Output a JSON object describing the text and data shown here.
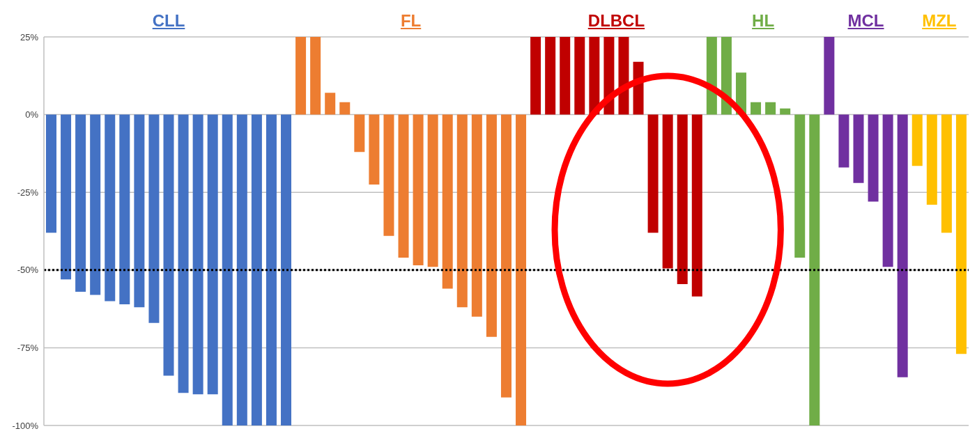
{
  "chart_data": {
    "type": "bar",
    "categories": [
      null,
      null,
      null,
      null,
      null,
      null,
      null,
      null,
      null,
      null,
      null,
      null,
      null,
      null,
      null,
      null,
      null,
      null,
      null,
      null,
      null,
      null,
      null,
      null,
      null,
      null,
      null,
      null,
      null,
      null,
      null,
      null,
      null,
      null,
      null,
      null,
      null,
      null,
      null,
      null,
      null,
      null,
      null,
      null,
      null,
      null,
      null,
      null,
      null,
      null,
      null,
      null,
      null,
      null,
      null,
      null,
      null,
      null,
      null,
      null,
      null,
      null,
      null
    ],
    "series": [
      {
        "name": "CLL",
        "color": "#4472c4",
        "values": [
          -38,
          -53,
          -57,
          -58,
          -60,
          -61,
          -62,
          -67,
          -84,
          -89.5,
          -90,
          -90,
          -100,
          -100,
          -100,
          -100,
          -100,
          null,
          null,
          null,
          null,
          null,
          null,
          null,
          null,
          null,
          null,
          null,
          null,
          null,
          null,
          null,
          null,
          null,
          null,
          null,
          null,
          null,
          null,
          null,
          null,
          null,
          null,
          null,
          null,
          null,
          null,
          null,
          null,
          null,
          null,
          null,
          null,
          null,
          null,
          null,
          null,
          null,
          null,
          null,
          null,
          null,
          null
        ]
      },
      {
        "name": "FL",
        "color": "#ed7d31",
        "values": [
          null,
          null,
          null,
          null,
          null,
          null,
          null,
          null,
          null,
          null,
          null,
          null,
          null,
          null,
          null,
          null,
          null,
          25,
          25,
          7,
          4,
          -12,
          -22.5,
          -39,
          -46,
          -48.5,
          -49,
          -56,
          -62,
          -65,
          -71.5,
          -91,
          -100,
          null,
          null,
          null,
          null,
          null,
          null,
          null,
          null,
          null,
          null,
          null,
          null,
          null,
          null,
          null,
          null,
          null,
          null,
          null,
          null,
          null,
          null,
          null,
          null,
          null,
          null,
          null,
          null,
          null,
          null
        ]
      },
      {
        "name": "DLBCL",
        "color": "#c00000",
        "values": [
          null,
          null,
          null,
          null,
          null,
          null,
          null,
          null,
          null,
          null,
          null,
          null,
          null,
          null,
          null,
          null,
          null,
          null,
          null,
          null,
          null,
          null,
          null,
          null,
          null,
          null,
          null,
          null,
          null,
          null,
          null,
          null,
          null,
          25,
          25,
          25,
          25,
          25,
          25,
          25,
          17,
          -38,
          -49.5,
          -54.5,
          -58.5,
          null,
          null,
          null,
          null,
          null,
          null,
          null,
          null,
          null,
          null,
          null,
          null,
          null,
          null,
          null,
          null,
          null,
          null
        ]
      },
      {
        "name": "HL",
        "color": "#70ad47",
        "values": [
          null,
          null,
          null,
          null,
          null,
          null,
          null,
          null,
          null,
          null,
          null,
          null,
          null,
          null,
          null,
          null,
          null,
          null,
          null,
          null,
          null,
          null,
          null,
          null,
          null,
          null,
          null,
          null,
          null,
          null,
          null,
          null,
          null,
          null,
          null,
          null,
          null,
          null,
          null,
          null,
          null,
          null,
          null,
          null,
          null,
          25,
          25,
          13.5,
          4,
          4,
          2,
          -46,
          -100,
          null,
          null,
          null,
          null,
          null,
          null,
          null,
          null,
          null,
          null
        ]
      },
      {
        "name": "MCL",
        "color": "#7030a0",
        "values": [
          null,
          null,
          null,
          null,
          null,
          null,
          null,
          null,
          null,
          null,
          null,
          null,
          null,
          null,
          null,
          null,
          null,
          null,
          null,
          null,
          null,
          null,
          null,
          null,
          null,
          null,
          null,
          null,
          null,
          null,
          null,
          null,
          null,
          null,
          null,
          null,
          null,
          null,
          null,
          null,
          null,
          null,
          null,
          null,
          null,
          null,
          null,
          null,
          null,
          null,
          null,
          null,
          null,
          25,
          -17,
          -22,
          -28,
          -49,
          -84.5,
          null,
          null,
          null,
          null
        ]
      },
      {
        "name": "MZL",
        "color": "#ffc000",
        "values": [
          null,
          null,
          null,
          null,
          null,
          null,
          null,
          null,
          null,
          null,
          null,
          null,
          null,
          null,
          null,
          null,
          null,
          null,
          null,
          null,
          null,
          null,
          null,
          null,
          null,
          null,
          null,
          null,
          null,
          null,
          null,
          null,
          null,
          null,
          null,
          null,
          null,
          null,
          null,
          null,
          null,
          null,
          null,
          null,
          null,
          null,
          null,
          null,
          null,
          null,
          null,
          null,
          null,
          null,
          null,
          null,
          null,
          null,
          null,
          -16.5,
          -29,
          -38,
          -77
        ]
      }
    ],
    "ylim": [
      -100,
      25
    ],
    "yticks": [
      {
        "value": 25,
        "label": "25%"
      },
      {
        "value": 0,
        "label": "0%"
      },
      {
        "value": -25,
        "label": "-25%"
      },
      {
        "value": -50,
        "label": "-50%"
      },
      {
        "value": -75,
        "label": "-75%"
      },
      {
        "value": -100,
        "label": "-100%"
      }
    ],
    "grid": "y",
    "legend": false,
    "tick_labels": "y",
    "ref_lines": [
      {
        "axis": "y",
        "value": -50,
        "color": "#000000",
        "line_style": "dotted"
      }
    ]
  }
}
